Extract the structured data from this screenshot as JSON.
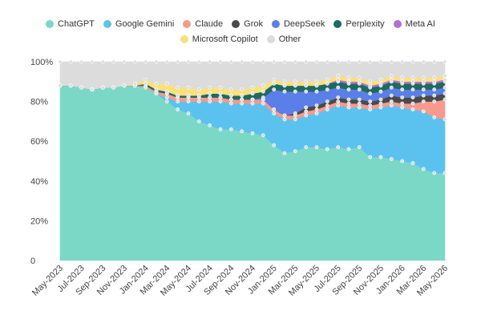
{
  "chart_data": {
    "type": "area",
    "stacked": true,
    "y_axis": {
      "ylim": [
        0,
        100
      ],
      "ticks": [
        0,
        20,
        40,
        60,
        80,
        100
      ],
      "tick_labels": [
        "0",
        "20%",
        "40%",
        "60%",
        "80%",
        "100%"
      ]
    },
    "x_tick_labels": [
      "May-2023",
      "Jul-2023",
      "Sep-2023",
      "Nov-2023",
      "Jan-2024",
      "Mar-2024",
      "May-2024",
      "Jul-2024",
      "Sep-2024",
      "Nov-2024",
      "Jan-2025",
      "Mar-2025",
      "May-2025",
      "Jul-2025",
      "Sep-2025",
      "Nov-2025",
      "Jan-2026",
      "Mar-2026",
      "May-2026"
    ],
    "categories": [
      "May-2023",
      "Jun-2023",
      "Jul-2023",
      "Aug-2023",
      "Sep-2023",
      "Oct-2023",
      "Nov-2023",
      "Dec-2023",
      "Jan-2024",
      "Feb-2024",
      "Mar-2024",
      "Apr-2024",
      "May-2024",
      "Jun-2024",
      "Jul-2024",
      "Aug-2024",
      "Sep-2024",
      "Oct-2024",
      "Nov-2024",
      "Dec-2024",
      "Jan-2025",
      "Feb-2025",
      "Mar-2025",
      "Apr-2025",
      "May-2025",
      "Jun-2025",
      "Jul-2025",
      "Aug-2025",
      "Sep-2025",
      "Oct-2025",
      "Nov-2025",
      "Dec-2025",
      "Jan-2026",
      "Feb-2026",
      "Mar-2026",
      "Apr-2026",
      "May-2026"
    ],
    "legend_position": "top",
    "series": [
      {
        "name": "ChatGPT",
        "color": "#7cd8c6",
        "values": [
          88,
          88,
          87,
          86,
          87,
          87,
          88,
          88,
          87,
          84,
          80,
          76,
          74,
          70,
          68,
          66,
          66,
          65,
          64,
          63,
          58,
          54,
          55,
          57,
          57,
          56,
          57,
          56,
          57,
          52,
          52,
          51,
          50,
          49,
          46,
          44,
          44
        ]
      },
      {
        "name": "Google Gemini",
        "color": "#5bc2ef",
        "values": [
          0,
          0,
          0,
          0,
          0,
          0,
          0,
          0,
          0,
          0,
          2,
          4,
          6,
          10,
          12,
          14,
          13,
          14,
          15,
          16,
          16,
          17,
          16,
          16,
          17,
          20,
          21,
          21,
          20,
          24,
          25,
          27,
          27,
          27,
          29,
          28,
          27
        ]
      },
      {
        "name": "Claude",
        "color": "#f59a8c",
        "values": [
          0,
          0,
          0,
          0,
          0,
          0,
          0,
          0,
          1,
          1,
          2,
          2,
          2,
          2,
          2,
          2,
          2,
          2,
          2,
          2,
          2,
          2,
          2,
          2,
          2,
          2,
          2,
          2,
          2,
          2,
          2,
          2,
          2,
          3,
          5,
          8,
          10
        ]
      },
      {
        "name": "Grok",
        "color": "#4a4a4a",
        "values": [
          0,
          0,
          0,
          0,
          0,
          0,
          0,
          0,
          0,
          0,
          0,
          0,
          0,
          0,
          0,
          0,
          0,
          0,
          0,
          0,
          0,
          0,
          1,
          2,
          2,
          2,
          2,
          2,
          2,
          2,
          2,
          3,
          3,
          3,
          3,
          3,
          3
        ]
      },
      {
        "name": "DeepSeek",
        "color": "#5b7fe8",
        "values": [
          0,
          0,
          0,
          0,
          0,
          0,
          0,
          0,
          0,
          0,
          0,
          0,
          0,
          0,
          0,
          0,
          0,
          0,
          0,
          1,
          10,
          12,
          11,
          8,
          7,
          6,
          5,
          5,
          5,
          4,
          4,
          4,
          4,
          4,
          3,
          3,
          3
        ]
      },
      {
        "name": "Perplexity",
        "color": "#1d6b5e",
        "values": [
          0,
          0,
          0,
          0,
          0,
          0,
          0,
          0,
          1,
          1,
          1,
          1,
          1,
          1,
          2,
          2,
          2,
          2,
          3,
          3,
          3,
          3,
          3,
          3,
          3,
          3,
          3,
          3,
          3,
          3,
          3,
          3,
          3,
          3,
          3,
          3,
          3
        ]
      },
      {
        "name": "Meta AI",
        "color": "#b26fd9",
        "values": [
          0,
          0,
          0,
          0,
          0,
          0,
          0,
          0,
          0,
          0,
          0,
          0,
          0,
          0,
          0,
          0,
          0,
          0,
          0,
          0,
          0,
          0,
          0,
          0,
          0,
          0,
          1,
          1,
          1,
          1,
          1,
          1,
          1,
          1,
          1,
          1,
          1
        ]
      },
      {
        "name": "Microsoft Copilot",
        "color": "#fce07a",
        "values": [
          0,
          0,
          0,
          0,
          0,
          0,
          0,
          1,
          2,
          3,
          4,
          4,
          4,
          3,
          3,
          3,
          3,
          3,
          3,
          3,
          2,
          2,
          2,
          2,
          2,
          2,
          2,
          2,
          2,
          2,
          2,
          2,
          2,
          2,
          2,
          2,
          2
        ]
      },
      {
        "name": "Other",
        "color": "#dcdcdc",
        "values": [
          12,
          12,
          13,
          14,
          13,
          13,
          12,
          11,
          9,
          11,
          11,
          13,
          13,
          14,
          13,
          13,
          14,
          14,
          13,
          12,
          9,
          10,
          10,
          10,
          10,
          9,
          7,
          8,
          8,
          10,
          9,
          7,
          8,
          8,
          8,
          8,
          7
        ]
      }
    ]
  }
}
